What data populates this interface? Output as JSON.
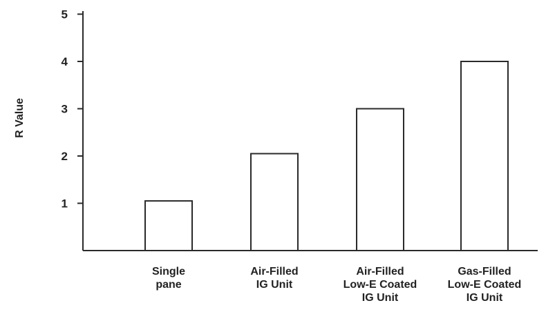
{
  "chart_data": {
    "type": "bar",
    "title": "",
    "xlabel": "",
    "ylabel": "R Value",
    "ylim": [
      0,
      5
    ],
    "yticks": [
      "1",
      "2",
      "3",
      "4",
      "5"
    ],
    "grid": false,
    "categories": [
      [
        "Single",
        "pane"
      ],
      [
        "Air-Filled",
        "IG Unit"
      ],
      [
        "Air-Filled",
        "Low-E Coated",
        "IG Unit"
      ],
      [
        "Gas-Filled",
        "Low-E Coated",
        "IG Unit"
      ]
    ],
    "values": [
      1.05,
      2.05,
      3.0,
      4.0
    ],
    "colors": {
      "bar_fill": "#ffffff",
      "bar_stroke": "#2a2a2a",
      "axis": "#2a2a2a",
      "text": "#222222"
    }
  }
}
